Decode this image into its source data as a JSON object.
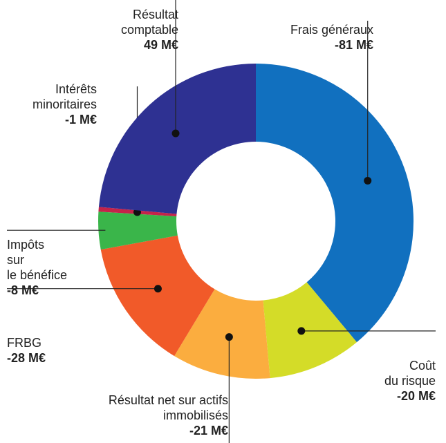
{
  "chart_data": {
    "type": "donut",
    "categories": [
      "Frais généraux",
      "Coût\ndu risque",
      "Résultat net sur actifs\nimmobilisés",
      "FRBG",
      "Impôts\nsur\nle bénéfice",
      "Intérêts\nminoritaires",
      "Résultat\ncomptable"
    ],
    "values": [
      -81,
      -20,
      -21,
      -28,
      -8,
      -1,
      49
    ],
    "value_labels": [
      "-81 M€",
      "-20 M€",
      "-21 M€",
      "-28 M€",
      "-8 M€",
      "-1 M€",
      "49 M€"
    ],
    "colors": [
      "#1170bf",
      "#d4dc28",
      "#fbad3f",
      "#f15a29",
      "#3ab54a",
      "#c4234a",
      "#2e3192"
    ]
  }
}
